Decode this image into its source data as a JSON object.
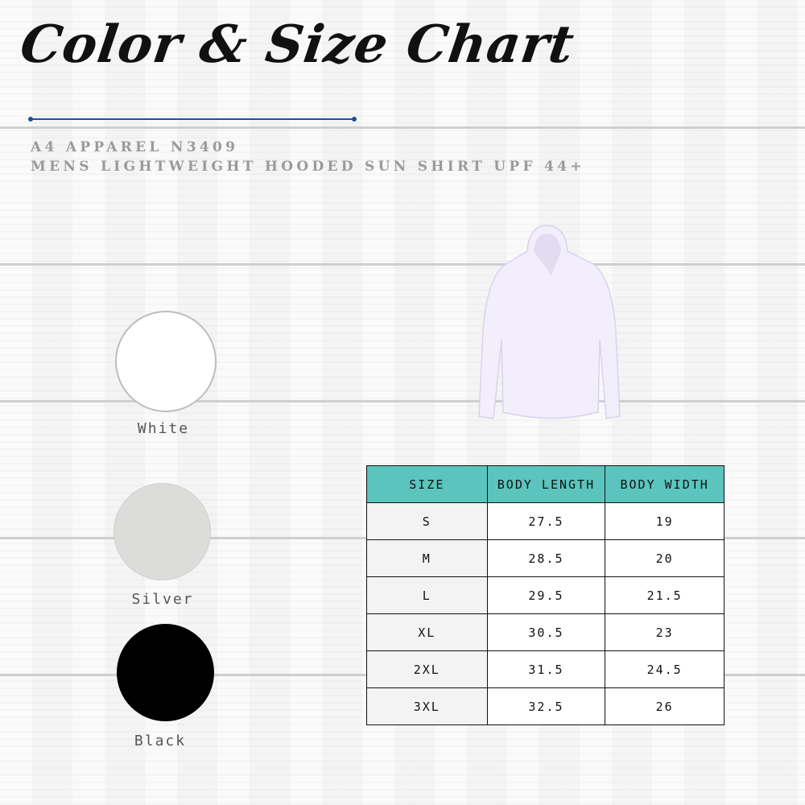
{
  "title": "Color & Size Chart",
  "brand_line": "A4 APPAREL N3409",
  "product_line": "MENS LIGHTWEIGHT HOODED SUN SHIRT UPF 44+",
  "colors": [
    {
      "name": "White",
      "hex": "#ffffff"
    },
    {
      "name": "Silver",
      "hex": "#dcdcda"
    },
    {
      "name": "Black",
      "hex": "#000000"
    }
  ],
  "accent": "#5bc4bd",
  "table": {
    "headers": [
      "SIZE",
      "BODY LENGTH",
      "BODY WIDTH"
    ],
    "rows": [
      [
        "S",
        "27.5",
        "19"
      ],
      [
        "M",
        "28.5",
        "20"
      ],
      [
        "L",
        "29.5",
        "21.5"
      ],
      [
        "XL",
        "30.5",
        "23"
      ],
      [
        "2XL",
        "31.5",
        "24.5"
      ],
      [
        "3XL",
        "32.5",
        "26"
      ]
    ]
  }
}
